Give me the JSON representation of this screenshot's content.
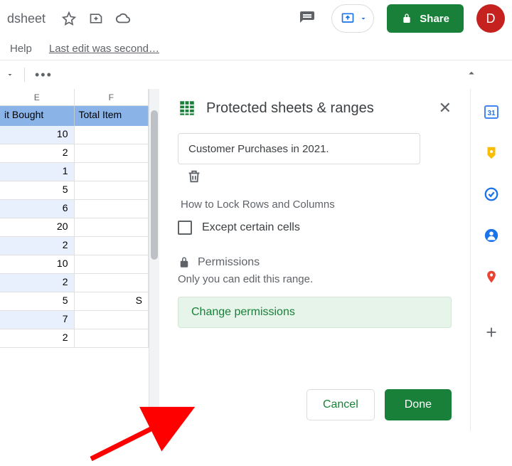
{
  "topbar": {
    "title_fragment": "dsheet",
    "help_label": "Help",
    "last_edit": "Last edit was second…",
    "share_label": "Share",
    "avatar_letter": "D"
  },
  "grid": {
    "cols": [
      "E",
      "F"
    ],
    "header_labels": [
      "it Bought",
      "Total Item"
    ],
    "rows": [
      {
        "e": "10",
        "f": "",
        "zebra": true
      },
      {
        "e": "2",
        "f": "",
        "zebra": false
      },
      {
        "e": "1",
        "f": "",
        "zebra": true
      },
      {
        "e": "5",
        "f": "",
        "zebra": false
      },
      {
        "e": "6",
        "f": "",
        "zebra": true
      },
      {
        "e": "20",
        "f": "",
        "zebra": false
      },
      {
        "e": "2",
        "f": "",
        "zebra": true
      },
      {
        "e": "10",
        "f": "",
        "zebra": false
      },
      {
        "e": "2",
        "f": "",
        "zebra": true
      },
      {
        "e": "5",
        "f": "S",
        "zebra": false
      },
      {
        "e": "7",
        "f": "",
        "zebra": true
      },
      {
        "e": "2",
        "f": "",
        "zebra": false
      }
    ]
  },
  "panel": {
    "title": "Protected sheets & ranges",
    "range_value": "Customer Purchases in 2021.",
    "sheet_name": "How to Lock Rows and Columns",
    "except_label": "Except certain cells",
    "permissions_label": "Permissions",
    "permissions_sub": "Only you can edit this range.",
    "change_label": "Change permissions",
    "cancel_label": "Cancel",
    "done_label": "Done"
  },
  "colors": {
    "green": "#188038",
    "grey": "#5f6368",
    "row_hl": "#8ab4e8",
    "arrow": "#ff0000"
  }
}
